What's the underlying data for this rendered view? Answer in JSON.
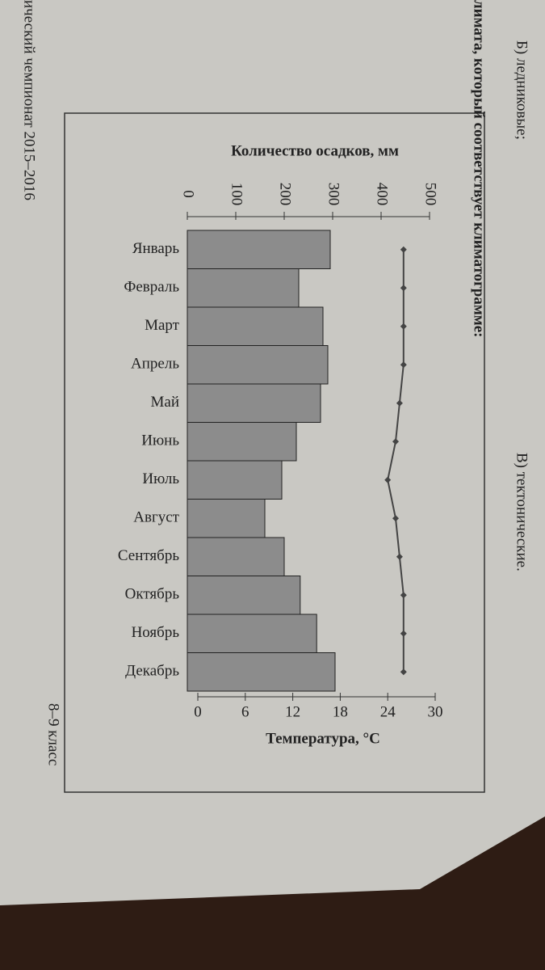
{
  "page": {
    "option_b": "Б) ледниковые;",
    "option_c": "В) тектонические.",
    "question_tail": "лимата, который соответствует климатограмме:",
    "footer_left": "ический чемпионат 2015–2016",
    "footer_right": "8–9 класс"
  },
  "chart_data": {
    "type": "combo",
    "categories": [
      "Январь",
      "Февраль",
      "Март",
      "Апрель",
      "Май",
      "Июнь",
      "Июль",
      "Август",
      "Сентябрь",
      "Октябрь",
      "Ноябрь",
      "Декабрь"
    ],
    "series": [
      {
        "name": "Количество осадков, мм",
        "kind": "bar",
        "color": "#8c8c8c",
        "values": [
          295,
          230,
          280,
          290,
          275,
          225,
          195,
          160,
          200,
          233,
          267,
          305
        ]
      },
      {
        "name": "Температура, °C",
        "kind": "line",
        "axis": "y2",
        "color": "#444444",
        "values": [
          26,
          26,
          26,
          26,
          25.5,
          25,
          24,
          25,
          25.5,
          26,
          26,
          26
        ]
      }
    ],
    "ylim": [
      0,
      500
    ],
    "yticks": [
      0,
      100,
      200,
      300,
      400,
      500
    ],
    "y2lim": [
      0,
      30
    ],
    "y2ticks": [
      0,
      6,
      12,
      18,
      24,
      30
    ]
  }
}
